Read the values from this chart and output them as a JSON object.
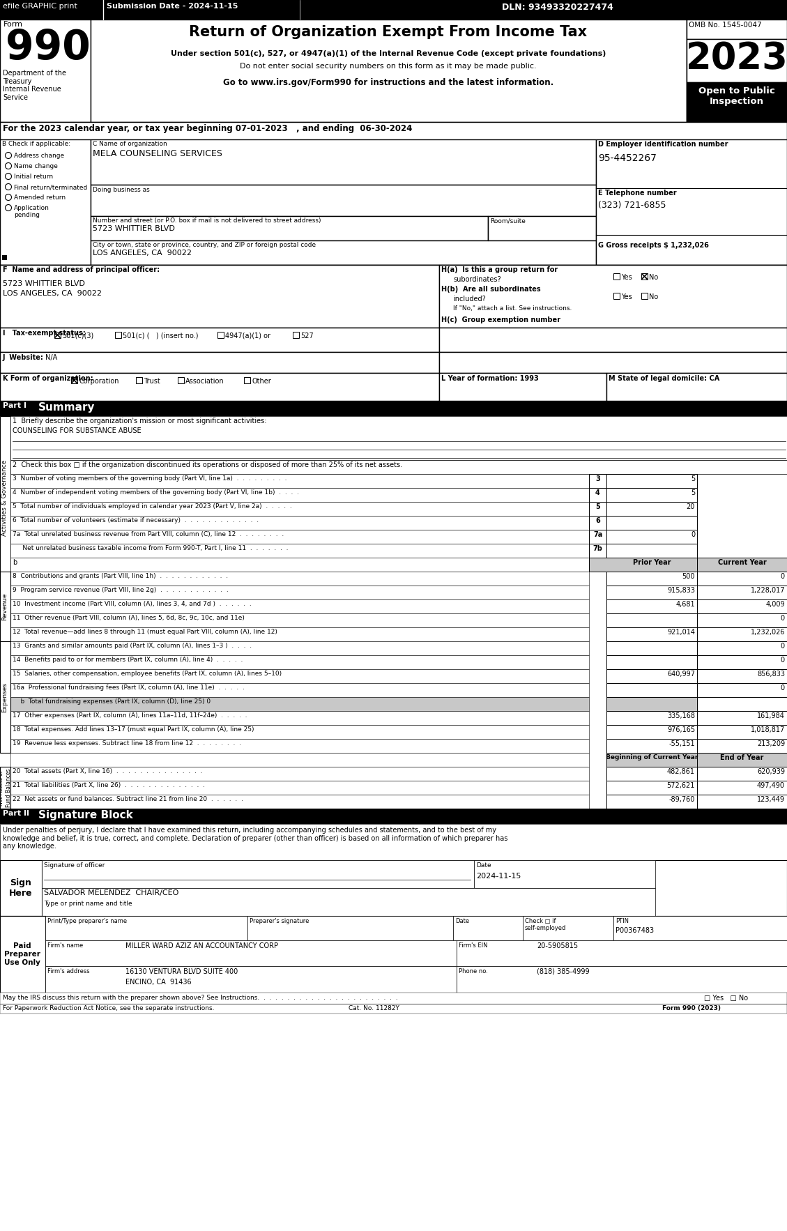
{
  "header_top": {
    "efile": "efile GRAPHIC print",
    "submission": "Submission Date - 2024-11-15",
    "dln": "DLN: 93493320227474"
  },
  "form_title": "Return of Organization Exempt From Income Tax",
  "form_subtitle1": "Under section 501(c), 527, or 4947(a)(1) of the Internal Revenue Code (except private foundations)",
  "form_subtitle2": "Do not enter social security numbers on this form as it may be made public.",
  "form_subtitle3": "Go to www.irs.gov/Form990 for instructions and the latest information.",
  "form_number": "990",
  "year": "2023",
  "omb": "OMB No. 1545-0047",
  "open_to_public": "Open to Public\nInspection",
  "dept_label": "Department of the\nTreasury\nInternal Revenue\nService",
  "tax_year_line": "For the 2023 calendar year, or tax year beginning 07-01-2023   , and ending  06-30-2024",
  "org_name_label": "C Name of organization",
  "org_name": "MELA COUNSELING SERVICES",
  "dba_label": "Doing business as",
  "address_label": "Number and street (or P.O. box if mail is not delivered to street address)",
  "room_label": "Room/suite",
  "address": "5723 WHITTIER BLVD",
  "city_label": "City or town, state or province, country, and ZIP or foreign postal code",
  "city": "LOS ANGELES, CA  90022",
  "ein_label": "D Employer identification number",
  "ein": "95-4452267",
  "phone_label": "E Telephone number",
  "phone": "(323) 721-6855",
  "gross_receipts_label": "G Gross receipts $ ",
  "gross_receipts": "1,232,026",
  "principal_officer_label": "F  Name and address of principal officer:",
  "principal_address1": "5723 WHITTIER BLVD",
  "principal_address2": "LOS ANGELES, CA  90022",
  "ha_label": "H(a)  Is this a group return for",
  "ha_sub": "subordinates?",
  "hb_label": "H(b)  Are all subordinates",
  "hb_sub": "included?",
  "hb_note": "If \"No,\" attach a list. See instructions.",
  "hc_label": "H(c)  Group exemption number",
  "tax_exempt_label": "I   Tax-exempt status:",
  "website_label": "J  Website:",
  "website": "N/A",
  "form_org_label": "K Form of organization:",
  "year_formation_label": "L Year of formation: 1993",
  "state_label": "M State of legal domicile: CA",
  "check_applicable": "B Check if applicable:",
  "check_items": [
    "Address change",
    "Name change",
    "Initial return",
    "Final return/terminated",
    "Amended return",
    "Application\npending"
  ],
  "part1_title": "Summary",
  "mission_label": "1  Briefly describe the organization's mission or most significant activities:",
  "mission": "COUNSELING FOR SUBSTANCE ABUSE",
  "line2": "2  Check this box □ if the organization discontinued its operations or disposed of more than 25% of its net assets.",
  "line3_label": "3  Number of voting members of the governing body (Part VI, line 1a)  .  .  .  .  .  .  .  .  .",
  "line3_num": "3",
  "line3_val": "5",
  "line4_label": "4  Number of independent voting members of the governing body (Part VI, line 1b)  .  .  .  .",
  "line4_num": "4",
  "line4_val": "5",
  "line5_label": "5  Total number of individuals employed in calendar year 2023 (Part V, line 2a)  .  .  .  .  .",
  "line5_num": "5",
  "line5_val": "20",
  "line6_label": "6  Total number of volunteers (estimate if necessary)  .  .  .  .  .  .  .  .  .  .  .  .  .",
  "line6_num": "6",
  "line6_val": "",
  "line7a_label": "7a  Total unrelated business revenue from Part VIII, column (C), line 12  .  .  .  .  .  .  .  .",
  "line7a_num": "7a",
  "line7a_val": "0",
  "line7b_label": "     Net unrelated business taxable income from Form 990-T, Part I, line 11  .  .  .  .  .  .  .",
  "line7b_num": "7b",
  "line7b_val": "",
  "prior_year_header": "Prior Year",
  "current_year_header": "Current Year",
  "line8_label": "8  Contributions and grants (Part VIII, line 1h)  .  .  .  .  .  .  .  .  .  .  .  .",
  "line8_prior": "500",
  "line8_current": "0",
  "line9_label": "9  Program service revenue (Part VIII, line 2g)  .  .  .  .  .  .  .  .  .  .  .  .",
  "line9_prior": "915,833",
  "line9_current": "1,228,017",
  "line10_label": "10  Investment income (Part VIII, column (A), lines 3, 4, and 7d )  .  .  .  .  .  .",
  "line10_prior": "4,681",
  "line10_current": "4,009",
  "line11_label": "11  Other revenue (Part VIII, column (A), lines 5, 6d, 8c, 9c, 10c, and 11e)",
  "line11_prior": "",
  "line11_current": "0",
  "line12_label": "12  Total revenue—add lines 8 through 11 (must equal Part VIII, column (A), line 12)",
  "line12_prior": "921,014",
  "line12_current": "1,232,026",
  "line13_label": "13  Grants and similar amounts paid (Part IX, column (A), lines 1–3 )  .  .  .  .",
  "line13_prior": "",
  "line13_current": "0",
  "line14_label": "14  Benefits paid to or for members (Part IX, column (A), line 4)  .  .  .  .  .",
  "line14_prior": "",
  "line14_current": "0",
  "line15_label": "15  Salaries, other compensation, employee benefits (Part IX, column (A), lines 5–10)",
  "line15_prior": "640,997",
  "line15_current": "856,833",
  "line16a_label": "16a  Professional fundraising fees (Part IX, column (A), line 11e)  .  .  .  .  .",
  "line16a_prior": "",
  "line16a_current": "0",
  "line16b_label": "    b  Total fundraising expenses (Part IX, column (D), line 25) 0",
  "line17_label": "17  Other expenses (Part IX, column (A), lines 11a–11d, 11f–24e)  .  .  .  .  .",
  "line17_prior": "335,168",
  "line17_current": "161,984",
  "line18_label": "18  Total expenses. Add lines 13–17 (must equal Part IX, column (A), line 25)",
  "line18_prior": "976,165",
  "line18_current": "1,018,817",
  "line19_label": "19  Revenue less expenses. Subtract line 18 from line 12  .  .  .  .  .  .  .  .",
  "line19_prior": "-55,151",
  "line19_current": "213,209",
  "boc_header": "Beginning of Current Year",
  "end_year_header": "End of Year",
  "line20_label": "20  Total assets (Part X, line 16)  .  .  .  .  .  .  .  .  .  .  .  .  .  .  .",
  "line20_prior": "482,861",
  "line20_current": "620,939",
  "line21_label": "21  Total liabilities (Part X, line 26)  .  .  .  .  .  .  .  .  .  .  .  .  .  .",
  "line21_prior": "572,621",
  "line21_current": "497,490",
  "line22_label": "22  Net assets or fund balances. Subtract line 21 from line 20  .  .  .  .  .  .",
  "line22_prior": "-89,760",
  "line22_current": "123,449",
  "part2_title": "Signature Block",
  "sig_perjury": "Under penalties of perjury, I declare that I have examined this return, including accompanying schedules and statements, and to the best of my\nknowledge and belief, it is true, correct, and complete. Declaration of preparer (other than officer) is based on all information of which preparer has\nany knowledge.",
  "sig_date": "2024-11-15",
  "sig_officer_label": "Signature of officer",
  "sig_name": "SALVADOR MELENDEZ  CHAIR/CEO",
  "sig_type_label": "Type or print name and title",
  "preparer_name_label": "Print/Type preparer's name",
  "preparer_sig_label": "Preparer's signature",
  "preparer_date_label": "Date",
  "preparer_check_label": "Check □ if\nself-employed",
  "preparer_ptin_label": "PTIN",
  "preparer_ptin": "P00367483",
  "preparer_firm_label": "Firm's name",
  "preparer_firm": "MILLER WARD AZIZ AN ACCOUNTANCY CORP",
  "preparer_ein_label": "Firm's EIN",
  "preparer_ein": "20-5905815",
  "preparer_address_label": "Firm's address",
  "preparer_address": "16130 VENTURA BLVD SUITE 400",
  "preparer_city": "ENCINO, CA  91436",
  "preparer_phone_label": "Phone no.",
  "preparer_phone": "(818) 385-4999",
  "discuss_label": "May the IRS discuss this return with the preparer shown above? See Instructions.  .  .  .  .  .  .  .  .  .  .  .  .  .  .  .  .  .  .  .  .  .  .  .",
  "paperwork_label": "For Paperwork Reduction Act Notice, see the separate instructions.",
  "cat_no": "Cat. No. 11282Y",
  "form_footer": "Form 990 (2023)"
}
